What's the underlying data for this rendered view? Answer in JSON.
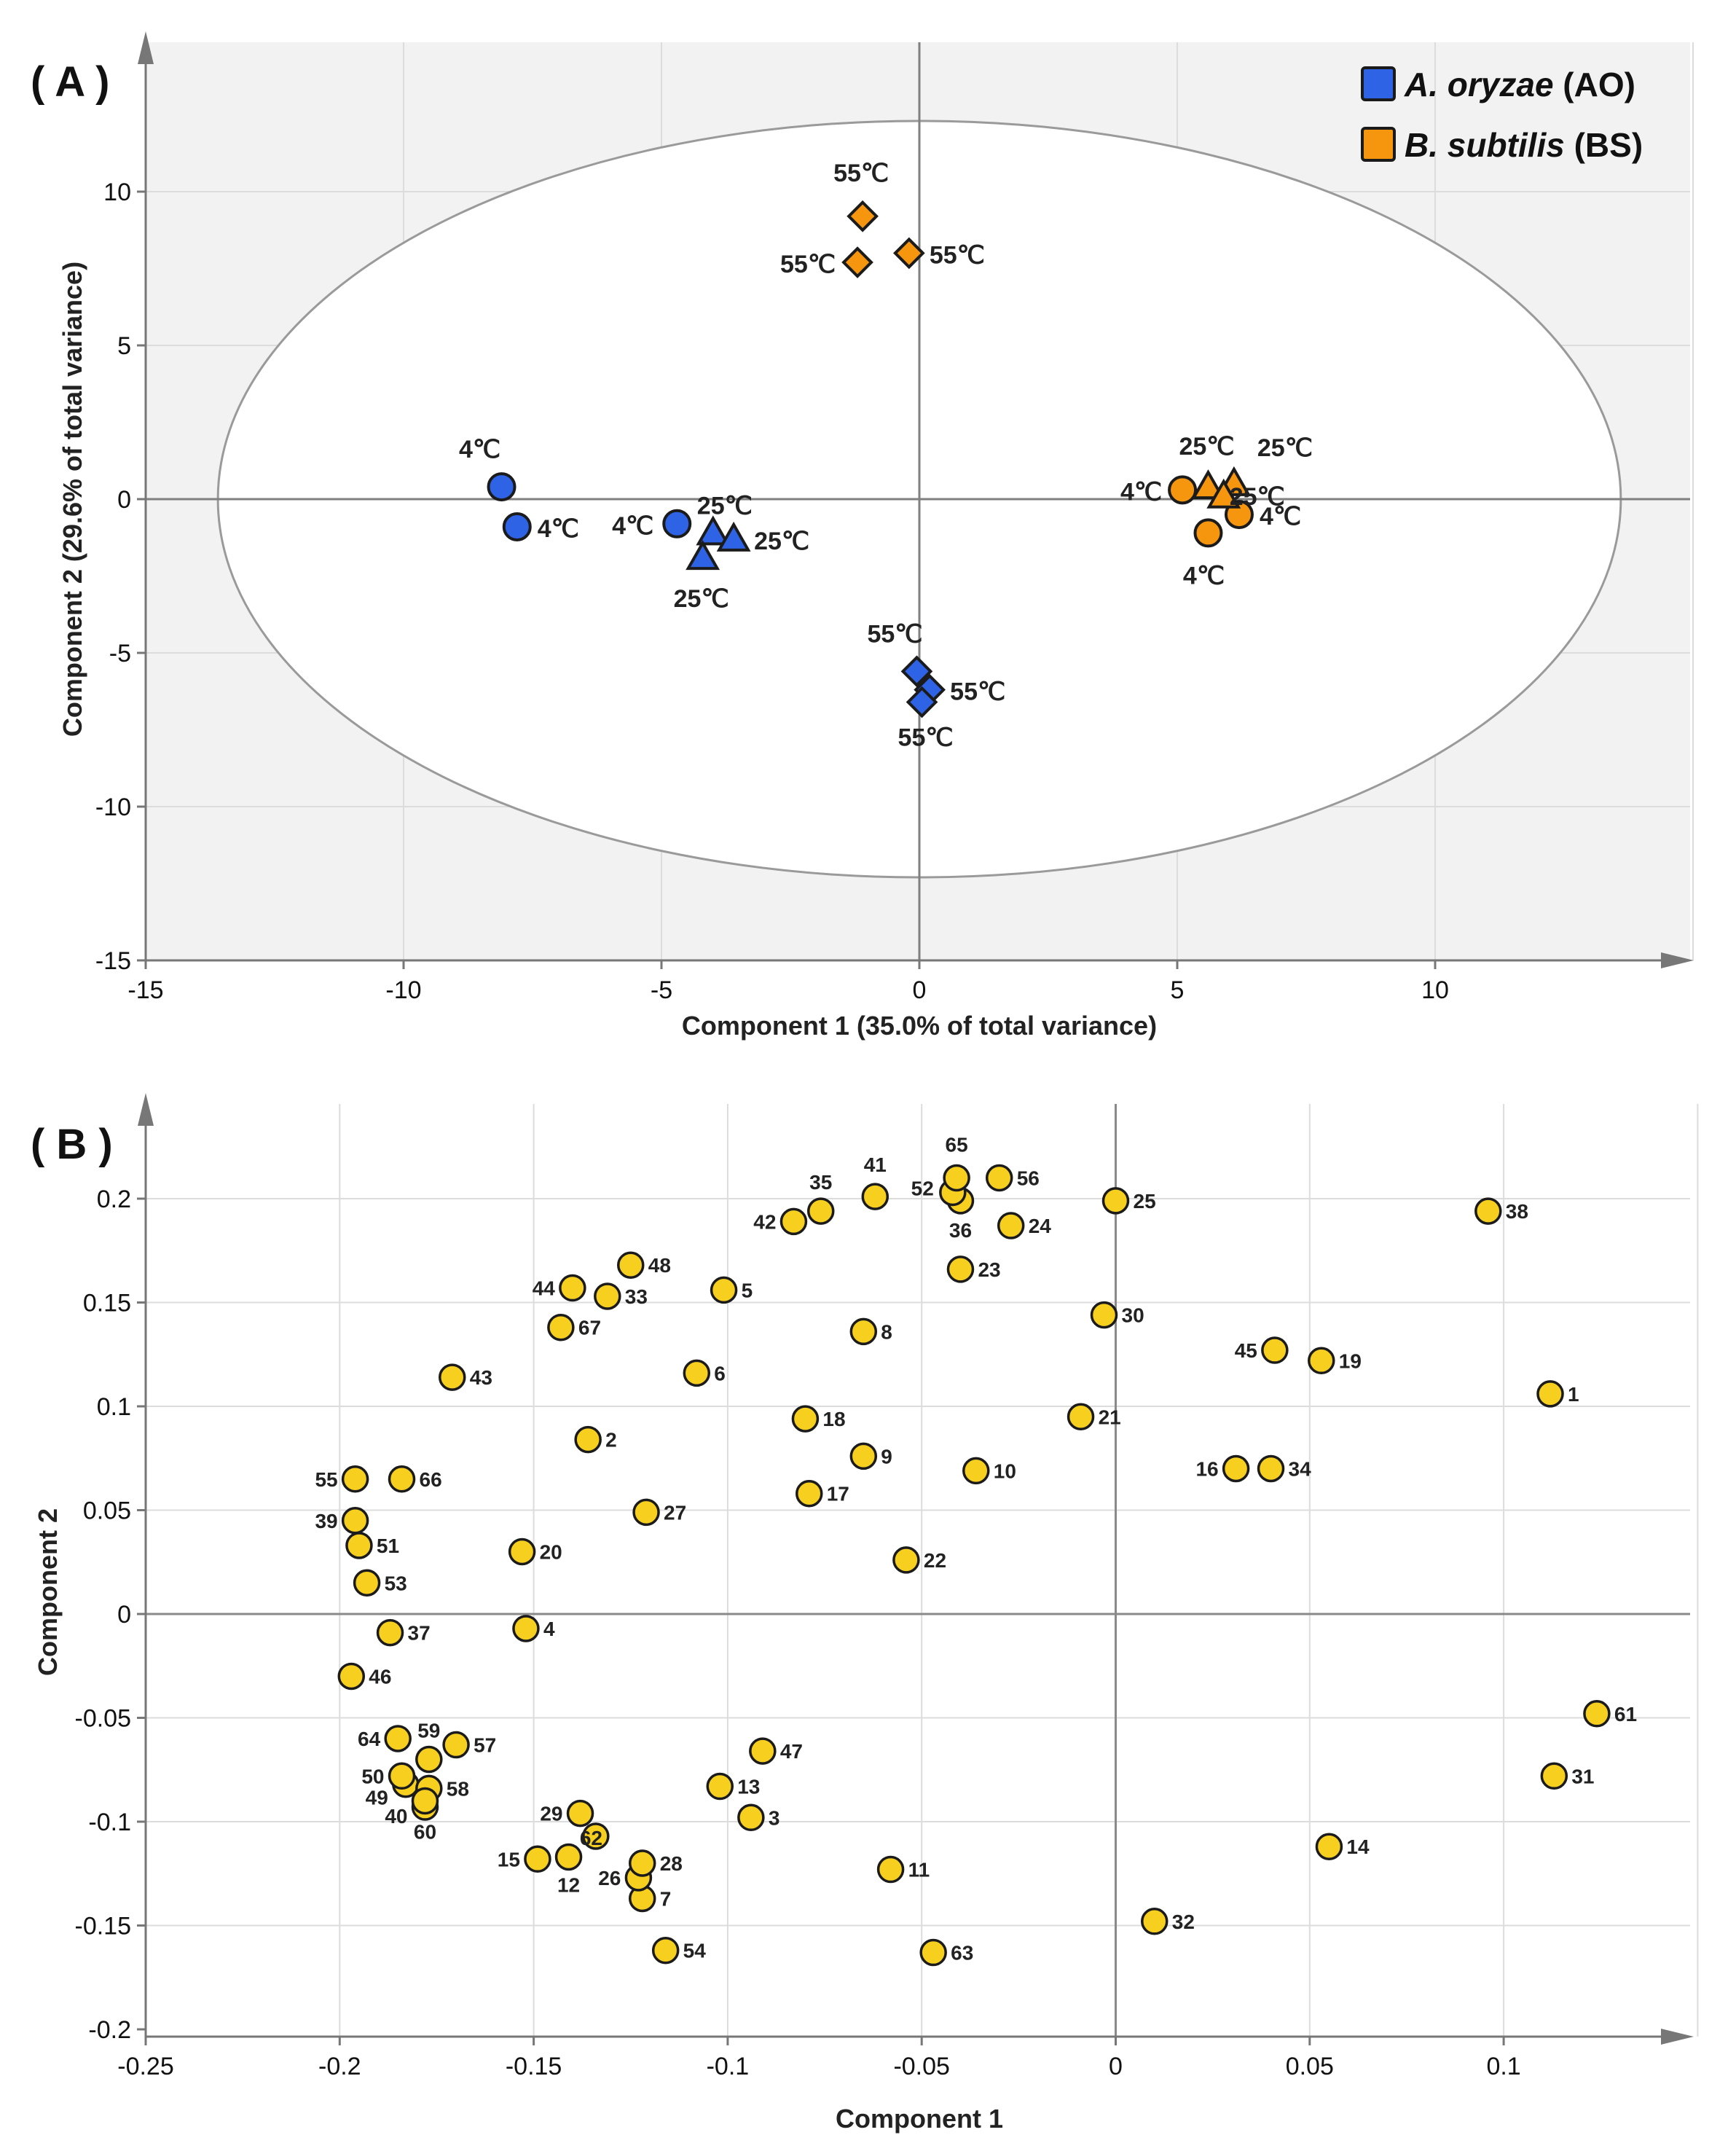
{
  "colors": {
    "ao": "#2f63e6",
    "bs": "#f5960e",
    "loading": "#f7cf1f",
    "plot_bg": "#f2f2f2",
    "grid": "#dcdcdc"
  },
  "chart_data": [
    {
      "type": "scatter",
      "panel_label": "( A )",
      "xlabel": "Component 1 (35.0% of total variance)",
      "ylabel": "Component 2 (29.6% of total variance)",
      "xlim": [
        -15,
        15
      ],
      "ylim": [
        -15,
        15
      ],
      "xticks": [
        -15,
        -10,
        -5,
        0,
        5,
        10
      ],
      "yticks": [
        -15,
        -10,
        -5,
        0,
        5,
        10
      ],
      "tick_labels_x": [
        "-15",
        "-10",
        "-5",
        "0",
        "5",
        "10"
      ],
      "tick_labels_y": [
        "-15",
        "-10",
        "-5",
        "0",
        "5",
        "10"
      ],
      "grid": true,
      "confidence_ellipse": {
        "center": [
          0,
          0
        ],
        "rx": 13.6,
        "ry": 12.3
      },
      "legend_position": "top-right",
      "legend": [
        {
          "name_italic": "A. oryzae",
          "suffix": " (AO)",
          "color": "#2f63e6"
        },
        {
          "name_italic": "B. subtilis",
          "suffix": " (BS)",
          "color": "#f5960e"
        }
      ],
      "series": [
        {
          "name": "A. oryzae (AO)",
          "color": "#2f63e6",
          "points": [
            {
              "x": -8.1,
              "y": 0.4,
              "shape": "circle",
              "label": "4℃"
            },
            {
              "x": -7.8,
              "y": -0.9,
              "shape": "circle",
              "label": "4℃"
            },
            {
              "x": -4.7,
              "y": -0.8,
              "shape": "circle",
              "label": "4℃"
            },
            {
              "x": -4.0,
              "y": -1.1,
              "shape": "triangle",
              "label": "25℃"
            },
            {
              "x": -3.6,
              "y": -1.3,
              "shape": "triangle",
              "label": "25℃"
            },
            {
              "x": -4.2,
              "y": -1.9,
              "shape": "triangle",
              "label": "25℃"
            },
            {
              "x": -0.05,
              "y": -5.6,
              "shape": "diamond",
              "label": "55℃"
            },
            {
              "x": 0.2,
              "y": -6.2,
              "shape": "diamond",
              "label": "55℃"
            },
            {
              "x": 0.05,
              "y": -6.6,
              "shape": "diamond",
              "label": "55℃"
            }
          ]
        },
        {
          "name": "B. subtilis (BS)",
          "color": "#f5960e",
          "points": [
            {
              "x": -1.1,
              "y": 9.2,
              "shape": "diamond",
              "label": "55℃"
            },
            {
              "x": -1.2,
              "y": 7.7,
              "shape": "diamond",
              "label": "55℃"
            },
            {
              "x": -0.2,
              "y": 8.0,
              "shape": "diamond",
              "label": "55℃"
            },
            {
              "x": 5.1,
              "y": 0.3,
              "shape": "circle",
              "label": "4℃"
            },
            {
              "x": 6.2,
              "y": -0.5,
              "shape": "circle",
              "label": "4℃"
            },
            {
              "x": 5.6,
              "y": -1.1,
              "shape": "circle",
              "label": "4℃"
            },
            {
              "x": 5.6,
              "y": 0.4,
              "shape": "triangle",
              "label": "25℃"
            },
            {
              "x": 6.1,
              "y": 0.5,
              "shape": "triangle",
              "label": "25℃"
            },
            {
              "x": 5.9,
              "y": 0.1,
              "shape": "triangle",
              "label": "25℃"
            }
          ]
        }
      ]
    },
    {
      "type": "scatter",
      "panel_label": "( B )",
      "xlabel": "Component 1",
      "ylabel": "Component 2",
      "xlim": [
        -0.25,
        0.15
      ],
      "ylim": [
        -0.2,
        0.25
      ],
      "xticks": [
        -0.25,
        -0.2,
        -0.15,
        -0.1,
        -0.05,
        0,
        0.05,
        0.1
      ],
      "yticks": [
        -0.2,
        -0.15,
        -0.1,
        -0.05,
        0,
        0.05,
        0.1,
        0.15,
        0.2
      ],
      "tick_labels_x": [
        "-0.25",
        "-0.2",
        "-0.15",
        "-0.1",
        "-0.05",
        "0",
        "0.05",
        "0.1"
      ],
      "tick_labels_y": [
        "-0.2",
        "-0.15",
        "-0.1",
        "-0.05",
        "0",
        "0.05",
        "0.1",
        "0.15",
        "0.2"
      ],
      "grid": true,
      "series": [
        {
          "name": "loadings",
          "color": "#f7cf1f",
          "points": [
            {
              "id": "1",
              "x": 0.112,
              "y": 0.106
            },
            {
              "id": "2",
              "x": -0.136,
              "y": 0.084
            },
            {
              "id": "3",
              "x": -0.094,
              "y": -0.098
            },
            {
              "id": "4",
              "x": -0.152,
              "y": -0.007
            },
            {
              "id": "5",
              "x": -0.101,
              "y": 0.156
            },
            {
              "id": "6",
              "x": -0.108,
              "y": 0.116
            },
            {
              "id": "7",
              "x": -0.122,
              "y": -0.137
            },
            {
              "id": "8",
              "x": -0.065,
              "y": 0.136
            },
            {
              "id": "9",
              "x": -0.065,
              "y": 0.076
            },
            {
              "id": "10",
              "x": -0.036,
              "y": 0.069
            },
            {
              "id": "11",
              "x": -0.058,
              "y": -0.123
            },
            {
              "id": "12",
              "x": -0.141,
              "y": -0.117
            },
            {
              "id": "13",
              "x": -0.102,
              "y": -0.083
            },
            {
              "id": "14",
              "x": 0.055,
              "y": -0.112
            },
            {
              "id": "15",
              "x": -0.149,
              "y": -0.118
            },
            {
              "id": "16",
              "x": 0.031,
              "y": 0.07
            },
            {
              "id": "17",
              "x": -0.079,
              "y": 0.058
            },
            {
              "id": "18",
              "x": -0.08,
              "y": 0.094
            },
            {
              "id": "19",
              "x": 0.053,
              "y": 0.122
            },
            {
              "id": "20",
              "x": -0.153,
              "y": 0.03
            },
            {
              "id": "21",
              "x": -0.009,
              "y": 0.095
            },
            {
              "id": "22",
              "x": -0.054,
              "y": 0.026
            },
            {
              "id": "23",
              "x": -0.04,
              "y": 0.166
            },
            {
              "id": "24",
              "x": -0.027,
              "y": 0.187
            },
            {
              "id": "25",
              "x": 0.0,
              "y": 0.199
            },
            {
              "id": "26",
              "x": -0.123,
              "y": -0.127
            },
            {
              "id": "27",
              "x": -0.121,
              "y": 0.049
            },
            {
              "id": "28",
              "x": -0.122,
              "y": -0.12
            },
            {
              "id": "29",
              "x": -0.138,
              "y": -0.096
            },
            {
              "id": "30",
              "x": -0.003,
              "y": 0.144
            },
            {
              "id": "31",
              "x": 0.113,
              "y": -0.078
            },
            {
              "id": "32",
              "x": 0.01,
              "y": -0.148
            },
            {
              "id": "33",
              "x": -0.131,
              "y": 0.153
            },
            {
              "id": "34",
              "x": 0.04,
              "y": 0.07
            },
            {
              "id": "35",
              "x": -0.076,
              "y": 0.194
            },
            {
              "id": "36",
              "x": -0.04,
              "y": 0.199
            },
            {
              "id": "37",
              "x": -0.187,
              "y": -0.009
            },
            {
              "id": "38",
              "x": 0.096,
              "y": 0.194
            },
            {
              "id": "39",
              "x": -0.196,
              "y": 0.045
            },
            {
              "id": "40",
              "x": -0.178,
              "y": -0.093
            },
            {
              "id": "41",
              "x": -0.062,
              "y": 0.201
            },
            {
              "id": "42",
              "x": -0.083,
              "y": 0.189
            },
            {
              "id": "43",
              "x": -0.171,
              "y": 0.114
            },
            {
              "id": "44",
              "x": -0.14,
              "y": 0.157
            },
            {
              "id": "45",
              "x": 0.041,
              "y": 0.127
            },
            {
              "id": "46",
              "x": -0.197,
              "y": -0.03
            },
            {
              "id": "47",
              "x": -0.091,
              "y": -0.066
            },
            {
              "id": "48",
              "x": -0.125,
              "y": 0.168
            },
            {
              "id": "49",
              "x": -0.183,
              "y": -0.082
            },
            {
              "id": "50",
              "x": -0.184,
              "y": -0.078
            },
            {
              "id": "51",
              "x": -0.195,
              "y": 0.033
            },
            {
              "id": "52",
              "x": -0.042,
              "y": 0.203
            },
            {
              "id": "53",
              "x": -0.193,
              "y": 0.015
            },
            {
              "id": "54",
              "x": -0.116,
              "y": -0.162
            },
            {
              "id": "55",
              "x": -0.196,
              "y": 0.065
            },
            {
              "id": "56",
              "x": -0.03,
              "y": 0.21
            },
            {
              "id": "57",
              "x": -0.17,
              "y": -0.063
            },
            {
              "id": "58",
              "x": -0.177,
              "y": -0.084
            },
            {
              "id": "59",
              "x": -0.177,
              "y": -0.07
            },
            {
              "id": "60",
              "x": -0.178,
              "y": -0.09
            },
            {
              "id": "61",
              "x": 0.124,
              "y": -0.048
            },
            {
              "id": "62",
              "x": -0.134,
              "y": -0.107
            },
            {
              "id": "63",
              "x": -0.047,
              "y": -0.163
            },
            {
              "id": "64",
              "x": -0.185,
              "y": -0.06
            },
            {
              "id": "65",
              "x": -0.041,
              "y": 0.21
            },
            {
              "id": "66",
              "x": -0.184,
              "y": 0.065
            },
            {
              "id": "67",
              "x": -0.143,
              "y": 0.138
            }
          ]
        }
      ]
    }
  ]
}
